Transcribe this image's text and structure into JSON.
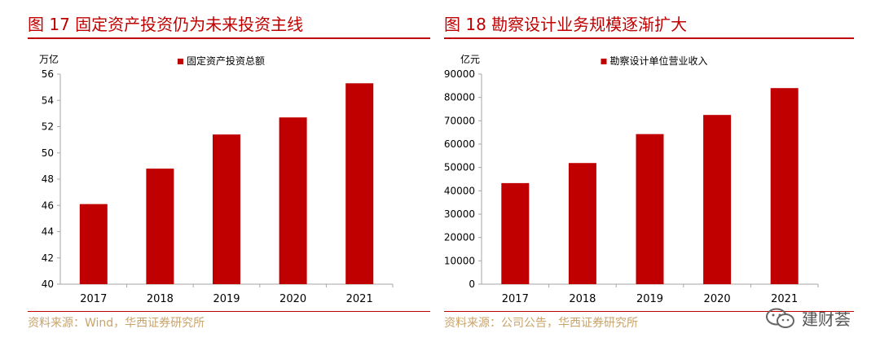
{
  "left": {
    "title": "图 17 固定资产投资仍为未来投资主线",
    "source": "资料来源：Wind，华西证券研究所",
    "chart_data": {
      "type": "bar",
      "categories": [
        "2017",
        "2018",
        "2019",
        "2020",
        "2021"
      ],
      "series": [
        {
          "name": "固定资产投资总额",
          "values": [
            46.1,
            48.8,
            51.4,
            52.7,
            55.3
          ]
        }
      ],
      "yunit": "万亿",
      "ylim": [
        40,
        56
      ],
      "yticks": [
        "40",
        "42",
        "44",
        "46",
        "48",
        "50",
        "52",
        "54",
        "56"
      ],
      "legend_position": "top",
      "grid": false
    }
  },
  "right": {
    "title": "图 18 勘察设计业务规模逐渐扩大",
    "source": "资料来源：公司公告，华西证券研究所",
    "chart_data": {
      "type": "bar",
      "categories": [
        "2017",
        "2018",
        "2019",
        "2020",
        "2021"
      ],
      "series": [
        {
          "name": "勘察设计单位营业收入",
          "values": [
            43300,
            51900,
            64300,
            72500,
            84000
          ]
        }
      ],
      "yunit": "亿元",
      "ylim": [
        0,
        90000
      ],
      "yticks": [
        "0",
        "10000",
        "20000",
        "30000",
        "40000",
        "50000",
        "60000",
        "70000",
        "80000",
        "90000"
      ],
      "legend_position": "top",
      "grid": false
    }
  },
  "colors": {
    "bar": "#c00000",
    "title": "#c00000",
    "source": "#c9a36a",
    "axis": "#a6a6a6"
  },
  "watermark": {
    "text": "建财荟",
    "icon": "wechat-icon"
  }
}
